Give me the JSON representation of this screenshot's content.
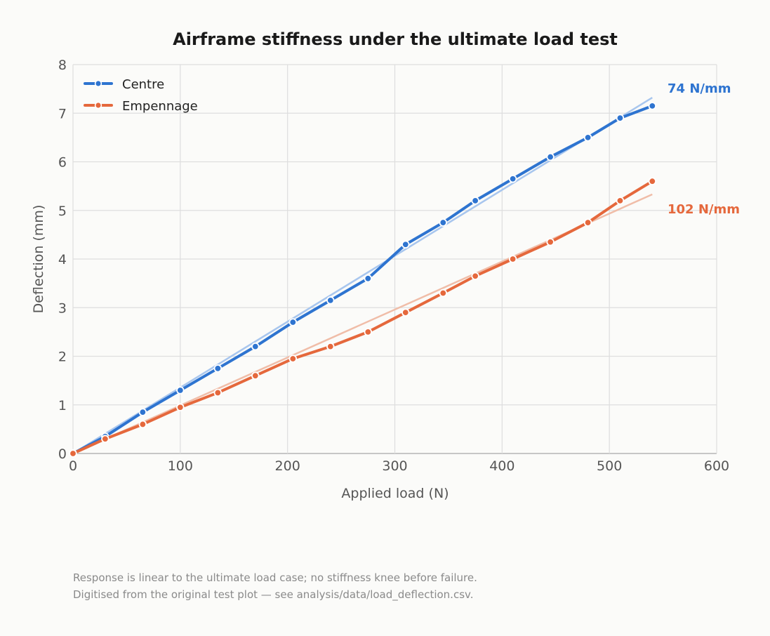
{
  "chart_data": {
    "type": "line",
    "title": "Airframe stiffness under the ultimate load test",
    "xlabel": "Applied load  (N)",
    "ylabel": "Deflection  (mm)",
    "xlim": [
      0,
      600
    ],
    "ylim": [
      0,
      8
    ],
    "xticks": [
      0,
      100,
      200,
      300,
      400,
      500,
      600
    ],
    "yticks": [
      0,
      1,
      2,
      3,
      4,
      5,
      6,
      7,
      8
    ],
    "grid": true,
    "legend_position": "top-left",
    "series": [
      {
        "name": "Centre",
        "color": "#2e74d0",
        "fit_color": "#a8c6ee",
        "x": [
          0,
          30,
          65,
          100,
          135,
          170,
          205,
          240,
          275,
          310,
          345,
          375,
          410,
          445,
          480,
          510,
          540
        ],
        "y": [
          0,
          0.35,
          0.85,
          1.3,
          1.75,
          2.2,
          2.7,
          3.15,
          3.6,
          4.3,
          4.75,
          5.2,
          5.65,
          6.1,
          6.5,
          6.9,
          7.15
        ],
        "fit": {
          "x": [
            0,
            540
          ],
          "y": [
            0,
            7.32
          ]
        },
        "stiffness_label": "74 N/mm"
      },
      {
        "name": "Empennage",
        "color": "#e5683c",
        "fit_color": "#f0bda8",
        "x": [
          0,
          30,
          65,
          100,
          135,
          170,
          205,
          240,
          275,
          310,
          345,
          375,
          410,
          445,
          480,
          510,
          540
        ],
        "y": [
          0,
          0.3,
          0.6,
          0.95,
          1.25,
          1.6,
          1.95,
          2.2,
          2.5,
          2.9,
          3.3,
          3.65,
          4.0,
          4.35,
          4.75,
          5.2,
          5.6
        ],
        "fit": {
          "x": [
            0,
            540
          ],
          "y": [
            0,
            5.33
          ]
        },
        "stiffness_label": "102 N/mm"
      }
    ]
  },
  "footnotes": [
    "Response is linear to the ultimate load case; no stiffness knee before failure.",
    "Digitised from the original test plot — see analysis/data/load_deflection.csv."
  ]
}
